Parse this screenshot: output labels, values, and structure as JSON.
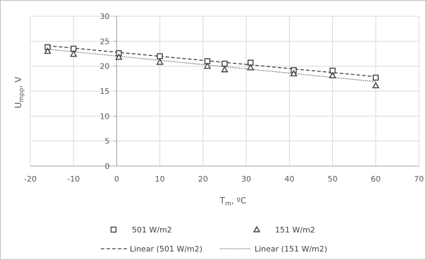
{
  "chart_data": {
    "type": "scatter",
    "title": "",
    "xlabel": "T",
    "xlabel_sub": "m",
    "xlabel_unit": ", ºC",
    "ylabel": "U",
    "ylabel_sub": "mpp",
    "ylabel_unit": ", V",
    "xlim": [
      -20,
      70
    ],
    "ylim": [
      0,
      30
    ],
    "x_ticks": [
      "-20",
      "-10",
      "0",
      "10",
      "20",
      "30",
      "40",
      "50",
      "60",
      "70"
    ],
    "y_ticks": [
      "0",
      "5",
      "10",
      "15",
      "20",
      "25",
      "30"
    ],
    "grid": true,
    "legend_position": "bottom",
    "series": [
      {
        "name": "501 W/m2",
        "marker": "square",
        "color": "#404040",
        "x": [
          -16,
          -10,
          0.5,
          10,
          21,
          25,
          31,
          41,
          50,
          60
        ],
        "y": [
          23.8,
          23.5,
          22.6,
          22.0,
          21.0,
          20.5,
          20.7,
          19.2,
          19.1,
          17.7
        ]
      },
      {
        "name": "151 W/m2",
        "marker": "triangle",
        "color": "#404040",
        "x": [
          -16,
          -10,
          0.5,
          10,
          21,
          25,
          31,
          41,
          50,
          60
        ],
        "y": [
          23.0,
          22.4,
          21.8,
          20.8,
          20.0,
          19.3,
          19.7,
          18.5,
          18.1,
          16.1
        ]
      }
    ],
    "trendlines": [
      {
        "name": "Linear (501 W/m2)",
        "style": "dashed",
        "x": [
          -16,
          60
        ],
        "y": [
          24.1,
          17.9
        ]
      },
      {
        "name": "Linear (151 W/m2)",
        "style": "dotted",
        "x": [
          -16,
          60
        ],
        "y": [
          23.4,
          16.9
        ]
      }
    ]
  }
}
